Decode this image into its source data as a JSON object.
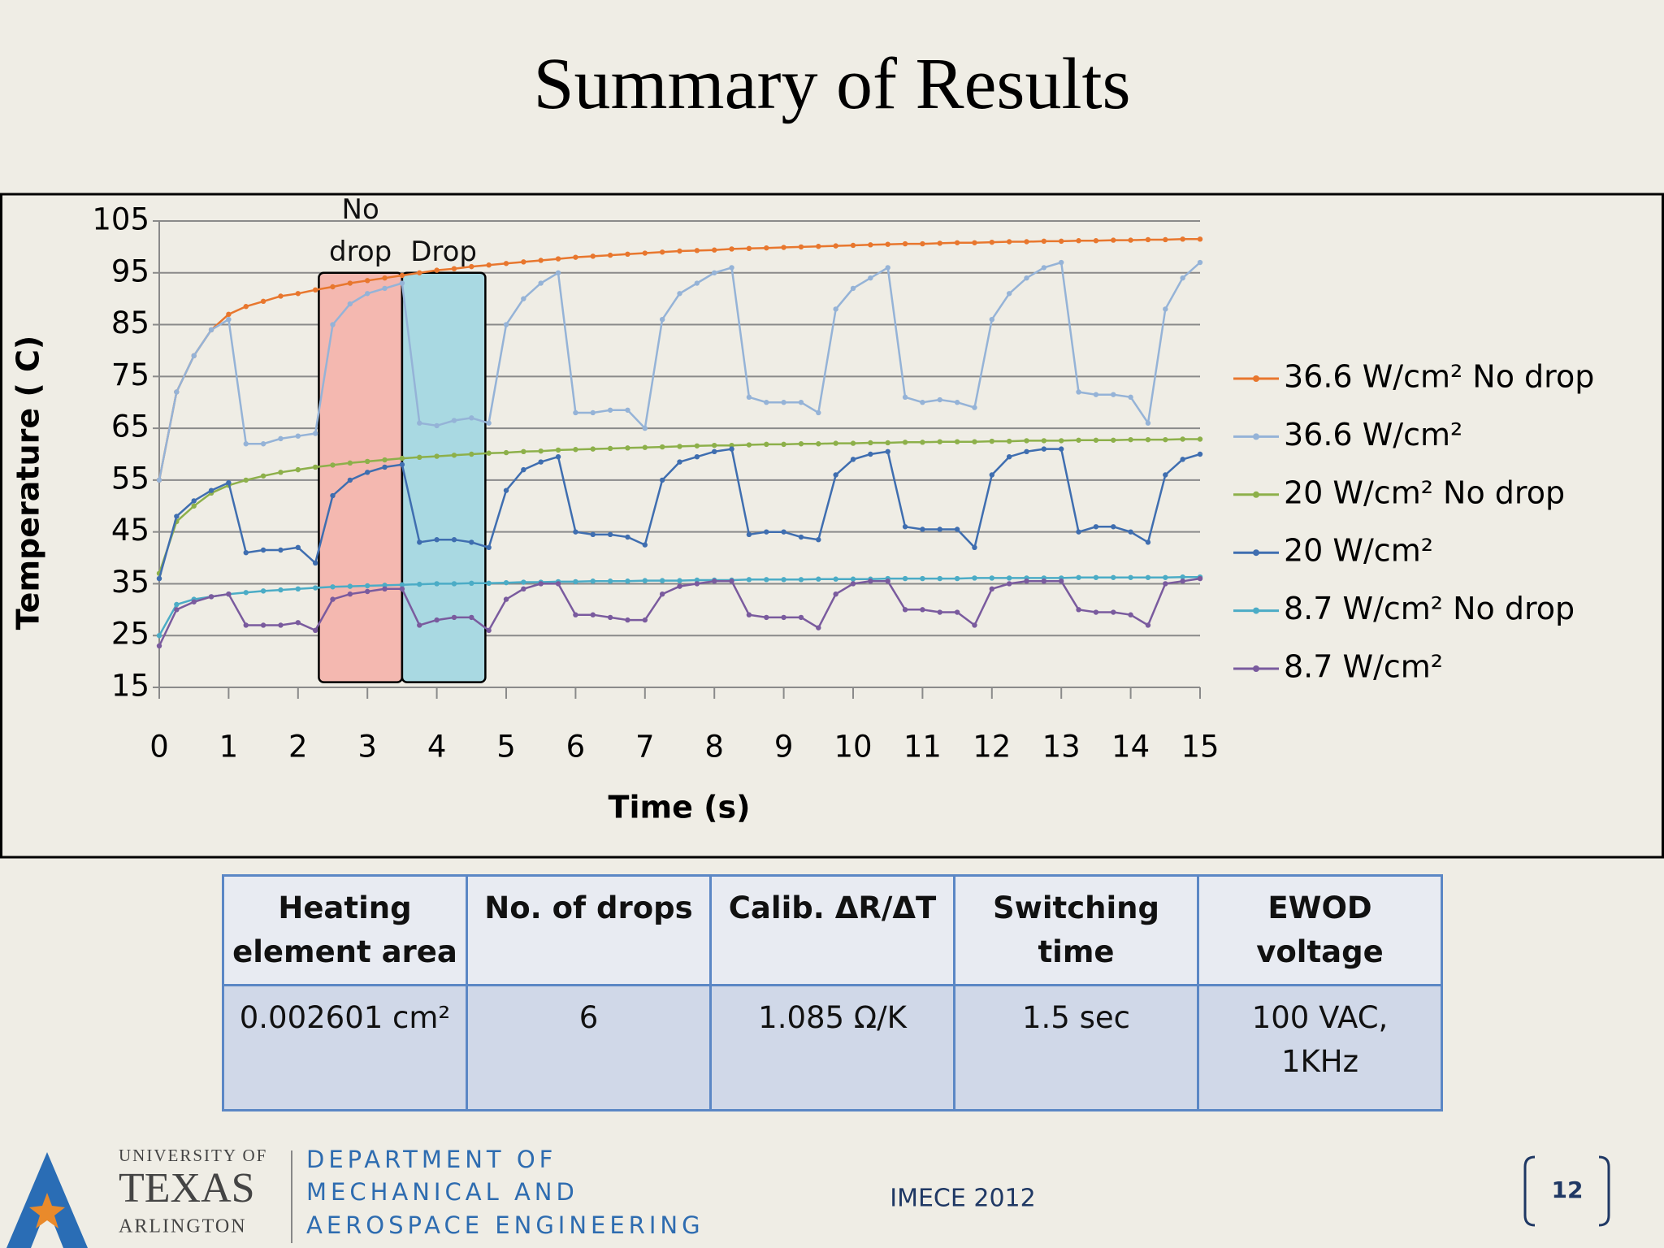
{
  "title": "Summary of Results",
  "chart_data": {
    "type": "line",
    "y_label": "Temperature ( C)",
    "x_label": "Time (s)",
    "xlim": [
      0,
      15
    ],
    "ylim": [
      15,
      105
    ],
    "xticks": [
      0,
      1,
      2,
      3,
      4,
      5,
      6,
      7,
      8,
      9,
      10,
      11,
      12,
      13,
      14,
      15
    ],
    "yticks": [
      15,
      25,
      35,
      45,
      55,
      65,
      75,
      85,
      95,
      105
    ],
    "grid": true,
    "legend": "right",
    "x": [
      0,
      0.25,
      0.5,
      0.75,
      1,
      1.25,
      1.5,
      1.75,
      2,
      2.25,
      2.5,
      2.75,
      3,
      3.25,
      3.5,
      3.75,
      4,
      4.25,
      4.5,
      4.75,
      5,
      5.25,
      5.5,
      5.75,
      6,
      6.25,
      6.5,
      6.75,
      7,
      7.25,
      7.5,
      7.75,
      8,
      8.25,
      8.5,
      8.75,
      9,
      9.25,
      9.5,
      9.75,
      10,
      10.25,
      10.5,
      10.75,
      11,
      11.25,
      11.5,
      11.75,
      12,
      12.25,
      12.5,
      12.75,
      13,
      13.25,
      13.5,
      13.75,
      14,
      14.25,
      14.5,
      14.75,
      15
    ],
    "series": [
      {
        "name": "36.6 W/cm² No drop",
        "color": "#e8772e",
        "values": [
          55,
          72,
          79,
          84,
          87,
          88.5,
          89.5,
          90.5,
          91,
          91.7,
          92.3,
          93,
          93.5,
          94,
          94.5,
          95,
          95.5,
          95.8,
          96.2,
          96.5,
          96.8,
          97.1,
          97.4,
          97.7,
          98,
          98.2,
          98.4,
          98.6,
          98.8,
          99,
          99.2,
          99.3,
          99.4,
          99.6,
          99.7,
          99.8,
          99.9,
          100,
          100.1,
          100.2,
          100.3,
          100.4,
          100.5,
          100.6,
          100.6,
          100.7,
          100.8,
          100.8,
          100.9,
          101,
          101,
          101.1,
          101.1,
          101.2,
          101.2,
          101.3,
          101.3,
          101.4,
          101.4,
          101.5,
          101.5
        ]
      },
      {
        "name": "36.6 W/cm²",
        "color": "#95b3d7",
        "values": [
          55,
          72,
          79,
          84,
          86,
          62,
          62,
          63,
          63.5,
          64,
          85,
          89,
          91,
          92,
          93,
          66,
          65.5,
          66.5,
          67,
          66,
          85,
          90,
          93,
          95,
          68,
          68,
          68.5,
          68.5,
          65,
          86,
          91,
          93,
          95,
          96,
          71,
          70,
          70,
          70,
          68,
          88,
          92,
          94,
          96,
          71,
          70,
          70.5,
          70,
          69,
          86,
          91,
          94,
          96,
          97,
          72,
          71.5,
          71.5,
          71,
          66,
          88,
          94,
          97
        ]
      },
      {
        "name": "20 W/cm² No drop",
        "color": "#8db04a",
        "values": [
          37,
          47,
          50,
          52.5,
          54,
          55,
          55.8,
          56.5,
          57,
          57.5,
          57.9,
          58.3,
          58.6,
          58.9,
          59.2,
          59.4,
          59.6,
          59.8,
          60,
          60.2,
          60.3,
          60.5,
          60.6,
          60.8,
          60.9,
          61,
          61.1,
          61.2,
          61.3,
          61.4,
          61.5,
          61.6,
          61.7,
          61.7,
          61.8,
          61.9,
          61.9,
          62,
          62,
          62.1,
          62.1,
          62.2,
          62.2,
          62.3,
          62.3,
          62.4,
          62.4,
          62.4,
          62.5,
          62.5,
          62.6,
          62.6,
          62.6,
          62.7,
          62.7,
          62.7,
          62.8,
          62.8,
          62.8,
          62.9,
          62.9
        ]
      },
      {
        "name": "20 W/cm²",
        "color": "#3f6eb0",
        "values": [
          36,
          48,
          51,
          53,
          54.5,
          41,
          41.5,
          41.5,
          42,
          39,
          52,
          55,
          56.5,
          57.5,
          58,
          43,
          43.5,
          43.5,
          43,
          42,
          53,
          57,
          58.5,
          59.5,
          45,
          44.5,
          44.5,
          44,
          42.5,
          55,
          58.5,
          59.5,
          60.5,
          61,
          44.5,
          45,
          45,
          44,
          43.5,
          56,
          59,
          60,
          60.5,
          46,
          45.5,
          45.5,
          45.5,
          42,
          56,
          59.5,
          60.5,
          61,
          61,
          45,
          46,
          46,
          45,
          43,
          56,
          59,
          60
        ]
      },
      {
        "name": "8.7 W/cm² No drop",
        "color": "#4bacc6",
        "values": [
          25,
          31,
          32,
          32.5,
          33,
          33.3,
          33.6,
          33.8,
          34,
          34.2,
          34.4,
          34.5,
          34.6,
          34.7,
          34.8,
          34.9,
          35,
          35,
          35.1,
          35.1,
          35.2,
          35.3,
          35.3,
          35.4,
          35.4,
          35.5,
          35.5,
          35.5,
          35.6,
          35.6,
          35.6,
          35.7,
          35.7,
          35.7,
          35.8,
          35.8,
          35.8,
          35.8,
          35.9,
          35.9,
          35.9,
          35.9,
          36,
          36,
          36,
          36,
          36,
          36.1,
          36.1,
          36.1,
          36.1,
          36.1,
          36.1,
          36.2,
          36.2,
          36.2,
          36.2,
          36.2,
          36.2,
          36.3,
          36.3
        ]
      },
      {
        "name": "8.7 W/cm²",
        "color": "#7a5b9e",
        "values": [
          23,
          30,
          31.5,
          32.5,
          33,
          27,
          27,
          27,
          27.5,
          26,
          32,
          33,
          33.5,
          34,
          34,
          27,
          28,
          28.5,
          28.5,
          26,
          32,
          34,
          35,
          35,
          29,
          29,
          28.5,
          28,
          28,
          33,
          34.5,
          35,
          35.5,
          35.5,
          29,
          28.5,
          28.5,
          28.5,
          26.5,
          33,
          35,
          35.5,
          35.5,
          30,
          30,
          29.5,
          29.5,
          27,
          34,
          35,
          35.5,
          35.5,
          35.5,
          30,
          29.5,
          29.5,
          29,
          27,
          35,
          35.5,
          36
        ]
      }
    ],
    "regions": [
      {
        "label": "No drop",
        "xrange": [
          2.3,
          3.5
        ],
        "yrange": [
          16,
          95
        ],
        "color": "#f4b8b0"
      },
      {
        "label": "Drop",
        "xrange": [
          3.5,
          4.7
        ],
        "yrange": [
          16,
          95
        ],
        "color": "#a9d9e2"
      }
    ]
  },
  "table": {
    "header": [
      [
        "Heating",
        "element area"
      ],
      [
        "No. of drops"
      ],
      [
        "Calib. ΔR/ΔT"
      ],
      [
        "Switching",
        "time"
      ],
      [
        "EWOD",
        "voltage"
      ]
    ],
    "rows": [
      [
        [
          "0.002601 cm²"
        ],
        [
          "6"
        ],
        [
          "1.085 Ω/K"
        ],
        [
          "1.5 sec"
        ],
        [
          "100 VAC,",
          "1KHz"
        ]
      ]
    ]
  },
  "footer": {
    "university": [
      "UNIVERSITY OF",
      "TEXAS",
      "ARLINGTON"
    ],
    "department": [
      "DEPARTMENT OF",
      "MECHANICAL AND",
      "AEROSPACE ENGINEERING"
    ],
    "conference": "IMECE 2012",
    "page": "12"
  }
}
